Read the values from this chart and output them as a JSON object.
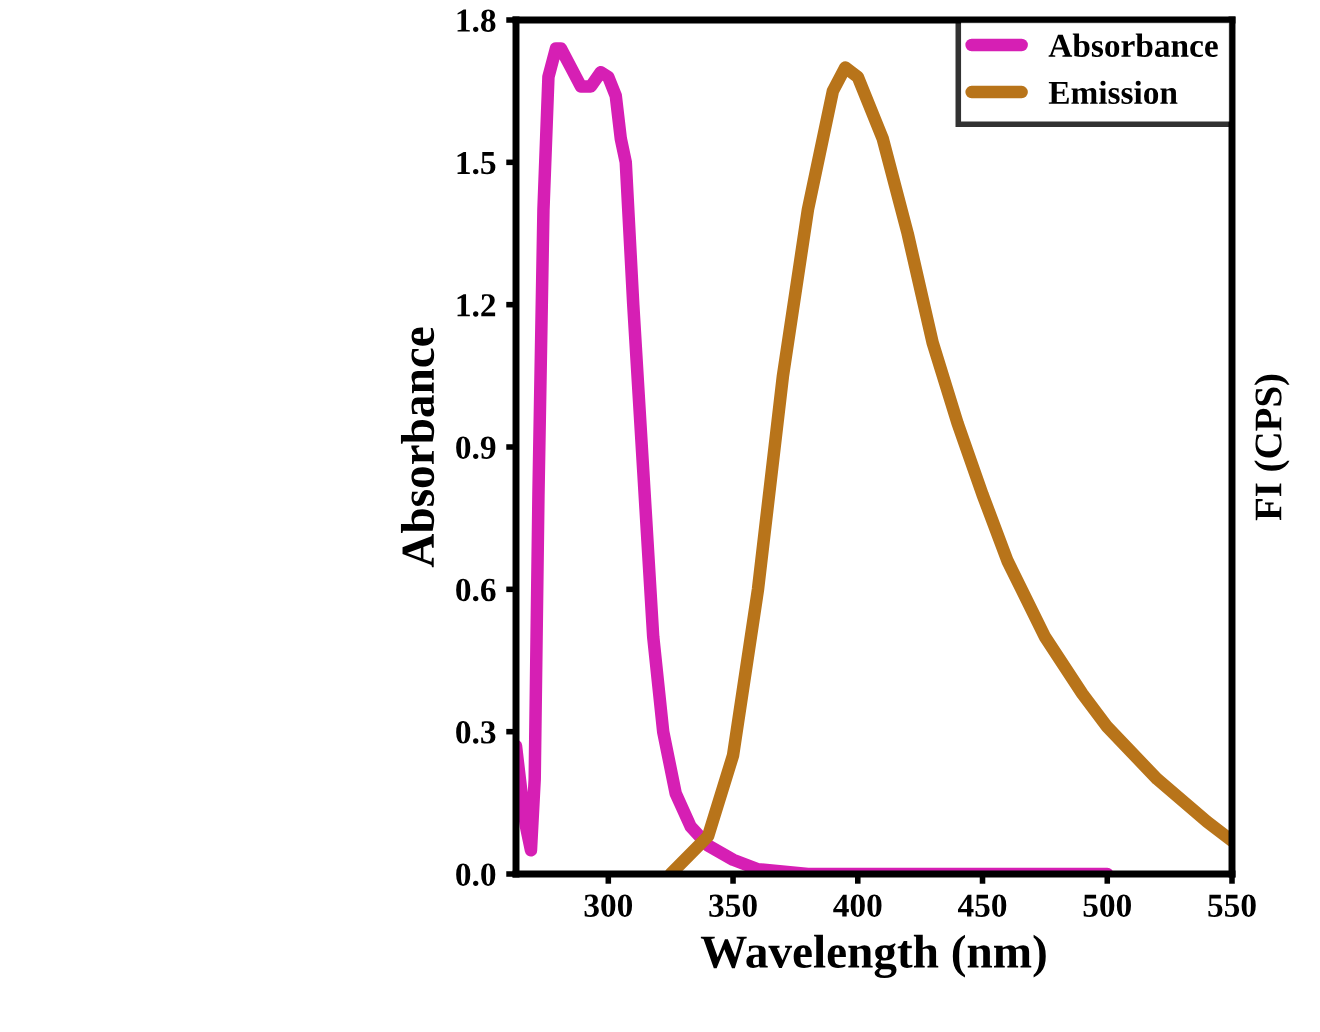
{
  "chart_data": {
    "type": "line",
    "xlabel": "Wavelength (nm)",
    "ylabel": "Absorbance",
    "y2label": "FI (CPS)",
    "xlim": [
      263,
      550
    ],
    "xticks": [
      300,
      350,
      400,
      450,
      500,
      550
    ],
    "ylim": [
      0,
      1.8
    ],
    "yticks": [
      {
        "value": 0,
        "label": "0.0"
      },
      0.3,
      0.6,
      0.9,
      1.2,
      1.5,
      1.8
    ],
    "legend": "top right",
    "line_style": "solid",
    "marker": "none",
    "grid": false,
    "series": [
      {
        "name": "Absorbance",
        "color": "#d61fb4",
        "x": [
          263,
          265,
          267,
          269,
          270.5,
          272,
          274,
          276,
          279,
          281,
          285,
          289,
          293,
          297,
          300,
          303,
          305,
          307,
          310,
          314,
          318,
          322,
          327,
          333,
          340,
          350,
          360,
          380,
          400,
          450,
          500
        ],
        "values": [
          0.27,
          0.18,
          0.1,
          0.05,
          0.2,
          0.8,
          1.4,
          1.68,
          1.74,
          1.74,
          1.7,
          1.66,
          1.66,
          1.69,
          1.68,
          1.64,
          1.55,
          1.5,
          1.2,
          0.85,
          0.5,
          0.3,
          0.17,
          0.1,
          0.06,
          0.03,
          0.01,
          0.0,
          0.0,
          0.0,
          0.0
        ]
      },
      {
        "name": "Emission",
        "color": "#b8741a",
        "x": [
          325,
          340,
          350,
          360,
          370,
          380,
          390,
          395,
          400,
          410,
          420,
          430,
          440,
          450,
          460,
          475,
          490,
          500,
          520,
          540,
          550
        ],
        "values": [
          0.0,
          0.08,
          0.25,
          0.6,
          1.05,
          1.4,
          1.65,
          1.7,
          1.68,
          1.55,
          1.35,
          1.12,
          0.95,
          0.8,
          0.66,
          0.5,
          0.38,
          0.31,
          0.2,
          0.11,
          0.07
        ]
      }
    ]
  }
}
